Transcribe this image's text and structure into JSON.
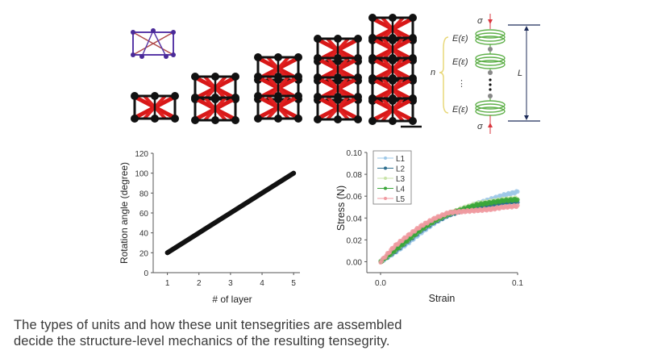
{
  "figure": {
    "top_panel": {
      "description": "Tensegrity assemblies with 1 to 5 stacked unit layers",
      "unit_model_label": "single unit tensegrity (purple/red)",
      "stacks": [
        1,
        2,
        3,
        4,
        5
      ],
      "scale_bar": true
    },
    "spring_diagram": {
      "top_load": "σ",
      "bottom_load": "σ",
      "spring_labels": [
        "E(ε)",
        "E(ε)",
        "E(ε)"
      ],
      "ellipsis": "⋮",
      "count_label": "n",
      "length_label": "L",
      "colors": {
        "spring": "#5fb04a",
        "brace": "#e8d87a",
        "load": "#d9363e",
        "node": "#888888",
        "dimension": "#1f2d5a"
      }
    }
  },
  "caption": {
    "line1": "The types of units and how these unit tensegrities are assembled",
    "line2": "decide the structure-level mechanics of the resulting tensegrity."
  },
  "chart_data": [
    {
      "type": "line",
      "title": "",
      "xlabel": "# of layer",
      "ylabel": "Rotation angle (degree)",
      "x": [
        1,
        2,
        3,
        4,
        5
      ],
      "values": [
        20,
        40,
        60,
        80,
        100
      ],
      "xlim": [
        0.55,
        5.2
      ],
      "ylim": [
        0,
        120
      ],
      "xticks": [
        "1",
        "2",
        "3",
        "4",
        "5"
      ],
      "yticks": [
        "0",
        "20",
        "40",
        "60",
        "80",
        "100",
        "120"
      ],
      "grid": false,
      "series_color": "#111111"
    },
    {
      "type": "scatter",
      "title": "",
      "xlabel": "Strain",
      "ylabel": "Stress (N)",
      "xlim": [
        -0.01,
        0.1
      ],
      "ylim": [
        -0.01,
        0.1
      ],
      "xticks": [
        "0.0",
        "0.1"
      ],
      "yticks": [
        "0.00",
        "0.02",
        "0.04",
        "0.06",
        "0.08",
        "0.10"
      ],
      "grid": false,
      "legend_position": "upper-left",
      "x": [
        0.0,
        0.01,
        0.02,
        0.03,
        0.04,
        0.05,
        0.06,
        0.07,
        0.08,
        0.09,
        0.1
      ],
      "series": [
        {
          "name": "L1",
          "color": "#9ec8e8",
          "values": [
            0.0,
            0.008,
            0.017,
            0.027,
            0.036,
            0.043,
            0.048,
            0.053,
            0.057,
            0.061,
            0.064
          ]
        },
        {
          "name": "L2",
          "color": "#2d6e8e",
          "values": [
            0.0,
            0.009,
            0.019,
            0.029,
            0.037,
            0.043,
            0.047,
            0.05,
            0.052,
            0.054,
            0.055
          ]
        },
        {
          "name": "L3",
          "color": "#c8e3a8",
          "values": [
            0.0,
            0.01,
            0.02,
            0.03,
            0.038,
            0.044,
            0.049,
            0.053,
            0.055,
            0.057,
            0.058
          ]
        },
        {
          "name": "L4",
          "color": "#3aa63a",
          "values": [
            0.0,
            0.01,
            0.02,
            0.03,
            0.038,
            0.044,
            0.048,
            0.052,
            0.054,
            0.056,
            0.057
          ]
        },
        {
          "name": "L5",
          "color": "#f09aa0",
          "values": [
            0.0,
            0.014,
            0.024,
            0.033,
            0.04,
            0.045,
            0.046,
            0.047,
            0.048,
            0.05,
            0.051
          ]
        }
      ]
    }
  ]
}
